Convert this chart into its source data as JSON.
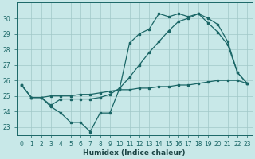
{
  "xlabel": "Humidex (Indice chaleur)",
  "xlim_min": -0.5,
  "xlim_max": 23.5,
  "ylim_min": 22.5,
  "ylim_max": 31.0,
  "yticks": [
    23,
    24,
    25,
    26,
    27,
    28,
    29,
    30
  ],
  "xticks": [
    0,
    1,
    2,
    3,
    4,
    5,
    6,
    7,
    8,
    9,
    10,
    11,
    12,
    13,
    14,
    15,
    16,
    17,
    18,
    19,
    20,
    21,
    22,
    23
  ],
  "bg_color": "#c8e8e8",
  "grid_color": "#a0c8c8",
  "line_color": "#1a6666",
  "line1_x": [
    0,
    1,
    2,
    3,
    4,
    5,
    6,
    7,
    8,
    9,
    10,
    11,
    12,
    13,
    14,
    15,
    16,
    17,
    18,
    19,
    20,
    21,
    22,
    23
  ],
  "line1_y": [
    25.7,
    24.9,
    24.9,
    25.0,
    25.0,
    25.0,
    25.1,
    25.1,
    25.2,
    25.3,
    25.4,
    25.4,
    25.5,
    25.5,
    25.6,
    25.6,
    25.7,
    25.7,
    25.8,
    25.9,
    26.0,
    26.0,
    26.0,
    25.8
  ],
  "line2_x": [
    0,
    1,
    2,
    3,
    4,
    5,
    6,
    7,
    8,
    9,
    10,
    11,
    12,
    13,
    14,
    15,
    16,
    17,
    18,
    19,
    20,
    21,
    22,
    23
  ],
  "line2_y": [
    25.7,
    24.9,
    24.9,
    24.4,
    24.8,
    24.8,
    24.8,
    24.8,
    24.9,
    25.1,
    25.5,
    26.2,
    27.0,
    27.8,
    28.5,
    29.2,
    29.8,
    30.0,
    30.3,
    29.7,
    29.1,
    28.3,
    26.5,
    25.8
  ],
  "line3_x": [
    0,
    1,
    2,
    3,
    4,
    5,
    6,
    7,
    8,
    9,
    10,
    11,
    12,
    13,
    14,
    15,
    16,
    17,
    18,
    19,
    20,
    21,
    22,
    23
  ],
  "line3_y": [
    25.7,
    24.9,
    24.9,
    24.3,
    23.9,
    23.3,
    23.3,
    22.7,
    23.9,
    23.9,
    25.5,
    28.4,
    29.0,
    29.3,
    30.3,
    30.1,
    30.3,
    30.1,
    30.3,
    30.0,
    29.6,
    28.5,
    26.5,
    25.8
  ]
}
